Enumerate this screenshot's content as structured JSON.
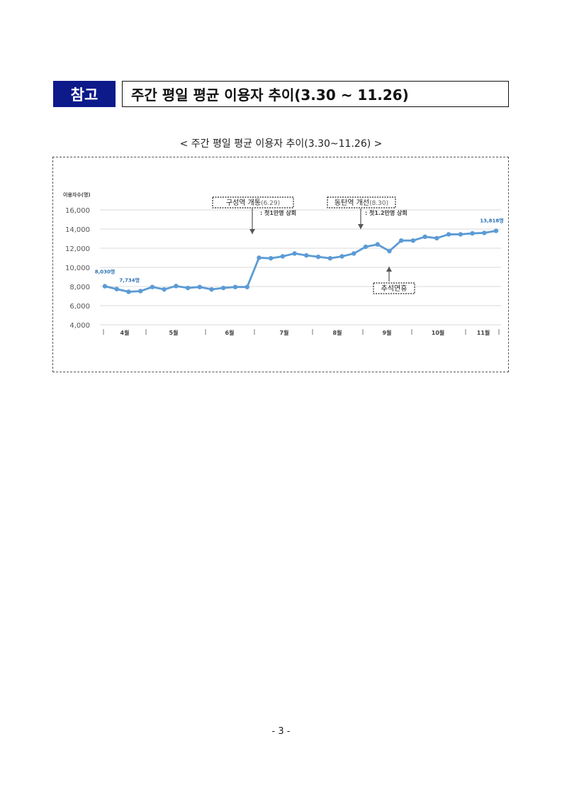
{
  "header": {
    "badge": "참고",
    "title": "주간 평일 평균 이용자 추이(3.30 ~ 11.26)"
  },
  "caption": "< 주간 평일 평균 이용자 추이(3.30~11.26) >",
  "page_number": "- 3 -",
  "chart_data": {
    "type": "line",
    "ylabel": "이용자수(명)",
    "ylim": [
      4000,
      16000
    ],
    "y_ticks": [
      "4,000",
      "6,000",
      "8,000",
      "10,000",
      "12,000",
      "14,000",
      "16,000"
    ],
    "months": [
      "4월",
      "5월",
      "6월",
      "7월",
      "8월",
      "9월",
      "10월",
      "11월"
    ],
    "series_color": "#5b9bd5",
    "values": [
      8030,
      7734,
      7450,
      7520,
      7950,
      7700,
      8050,
      7850,
      7950,
      7700,
      7850,
      7950,
      7950,
      11000,
      10950,
      11150,
      11450,
      11250,
      11100,
      10950,
      11150,
      11450,
      12150,
      12400,
      11700,
      12800,
      12800,
      13200,
      13050,
      13450,
      13450,
      13550,
      13600,
      13818
    ],
    "data_labels": [
      {
        "index": 0,
        "text": "8,030명"
      },
      {
        "index": 1,
        "text": "7,734명"
      },
      {
        "index": 33,
        "text": "13,818명"
      }
    ],
    "annotations": [
      {
        "title": "구성역 개통",
        "date": "(6.29)",
        "note": ": 첫1만명 상회"
      },
      {
        "title": "동탄역 개선",
        "date": "(8.30)",
        "note": ": 첫1.2만명 상회"
      },
      {
        "title": "추석연휴",
        "date": "",
        "note": ""
      }
    ]
  }
}
